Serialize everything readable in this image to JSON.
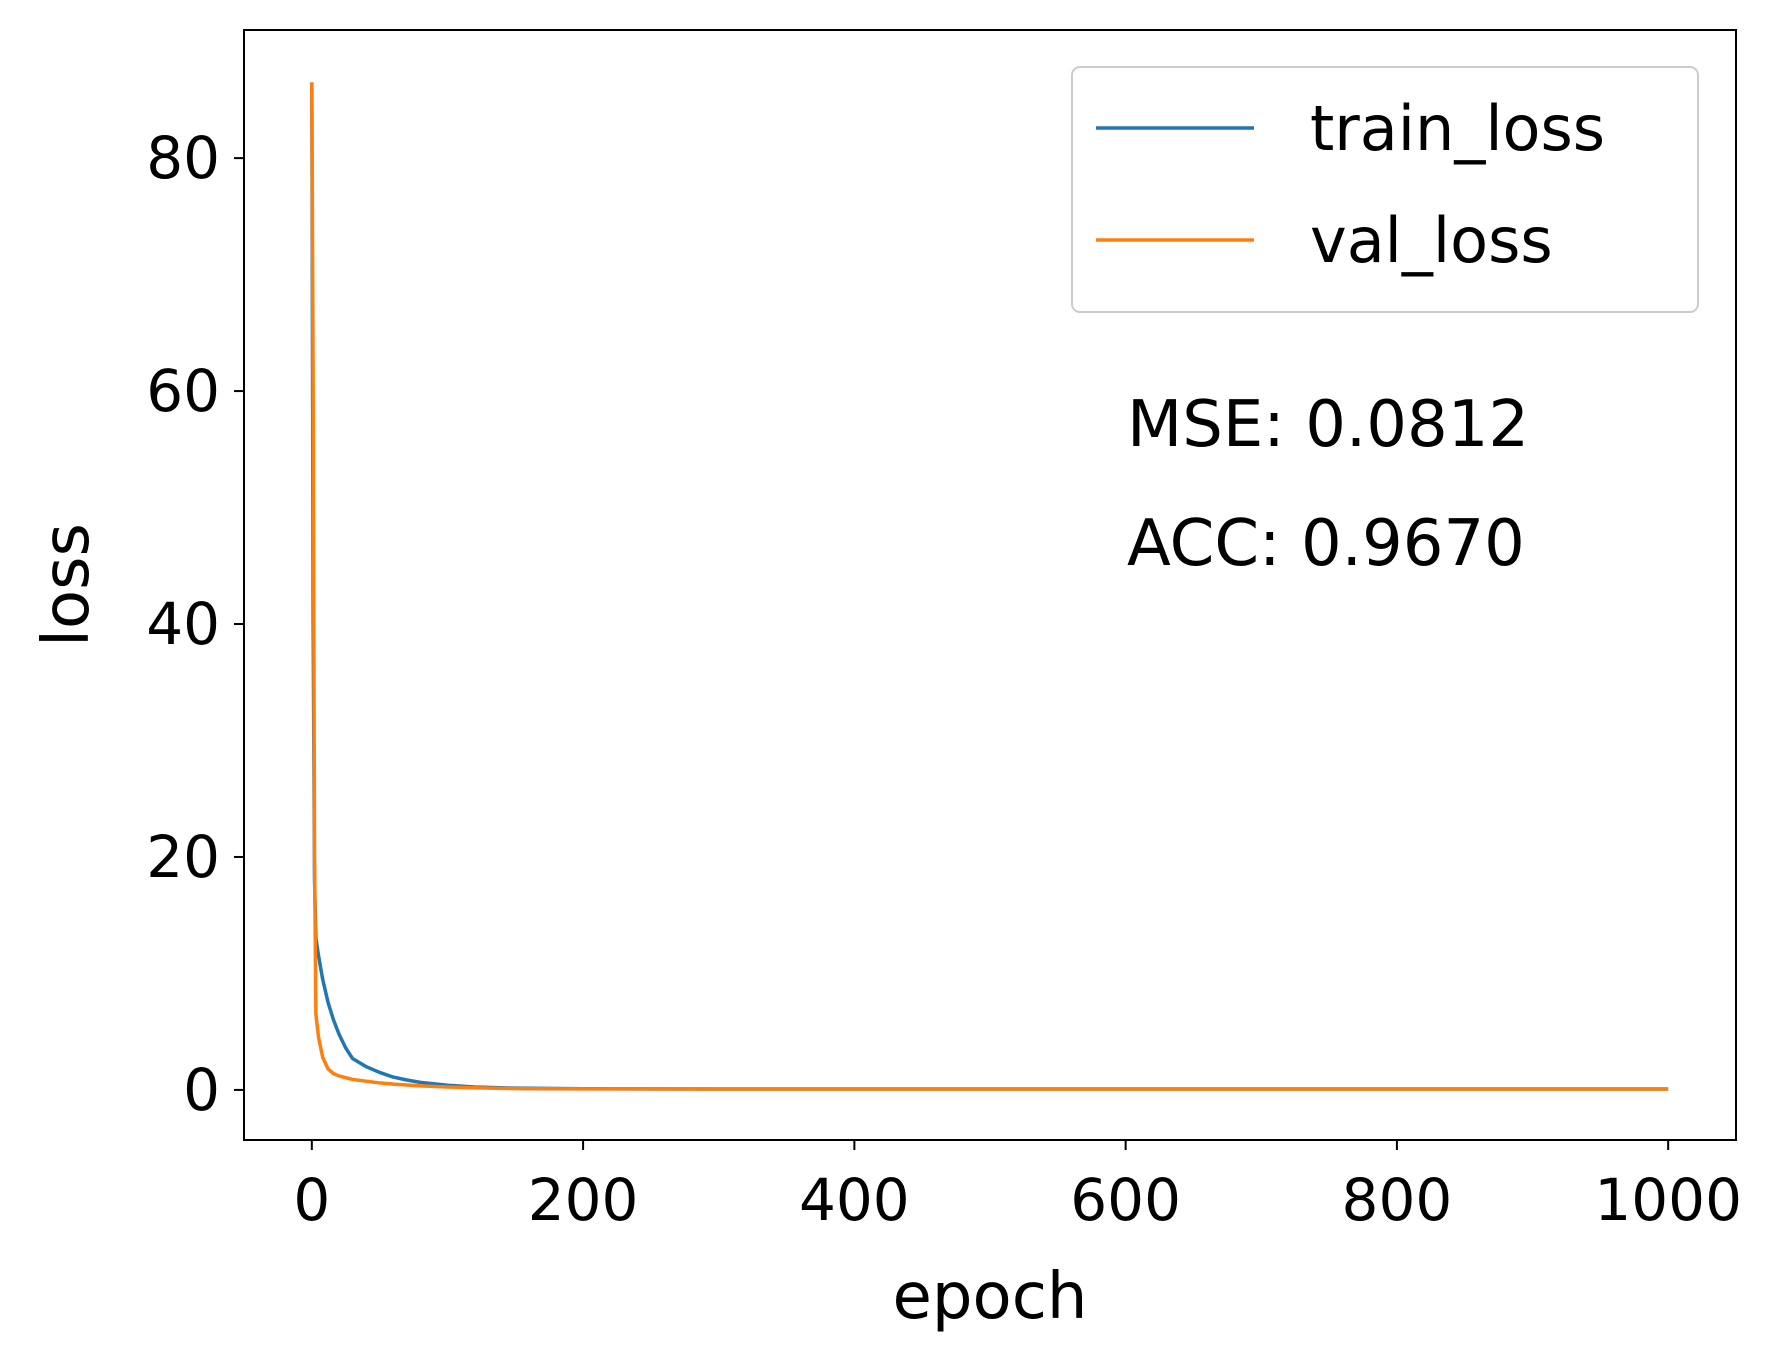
{
  "chart_data": {
    "type": "line",
    "xlabel": "epoch",
    "ylabel": "loss",
    "xlim": [
      -50,
      1050
    ],
    "ylim": [
      -4.3,
      91
    ],
    "xticks": [
      0,
      200,
      400,
      600,
      800,
      1000
    ],
    "yticks": [
      0,
      20,
      40,
      60,
      80
    ],
    "grid": false,
    "legend_position": "top-right",
    "series": [
      {
        "name": "train_loss",
        "color": "#1f77b4",
        "x": [
          0,
          1,
          2,
          3,
          5,
          8,
          12,
          16,
          20,
          25,
          30,
          40,
          50,
          60,
          70,
          80,
          100,
          120,
          150,
          200,
          300,
          400,
          500,
          600,
          700,
          800,
          900,
          1000
        ],
        "y": [
          86.5,
          40,
          18,
          13,
          11.5,
          9.5,
          7.5,
          6.0,
          4.8,
          3.6,
          2.7,
          2.0,
          1.5,
          1.1,
          0.85,
          0.65,
          0.4,
          0.25,
          0.15,
          0.1,
          0.08,
          0.08,
          0.08,
          0.08,
          0.08,
          0.08,
          0.08,
          0.08
        ]
      },
      {
        "name": "val_loss",
        "color": "#ff7f0e",
        "x": [
          0,
          1,
          2,
          3,
          5,
          8,
          12,
          16,
          20,
          30,
          40,
          50,
          60,
          80,
          100,
          130,
          160,
          200,
          300,
          400,
          500,
          600,
          700,
          800,
          900,
          1000
        ],
        "y": [
          86.5,
          60,
          20,
          6.5,
          4.5,
          2.8,
          1.8,
          1.4,
          1.2,
          0.9,
          0.75,
          0.6,
          0.5,
          0.35,
          0.25,
          0.15,
          0.1,
          0.09,
          0.08,
          0.08,
          0.08,
          0.08,
          0.08,
          0.08,
          0.08,
          0.08
        ]
      }
    ],
    "annotations": [
      "MSE: 0.0812",
      "ACC: 0.9670"
    ]
  }
}
